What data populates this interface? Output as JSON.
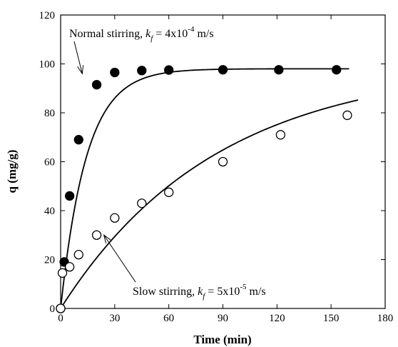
{
  "chart_data": {
    "type": "scatter",
    "xlabel": "Time (min)",
    "ylabel": "q (mg/g)",
    "xlim": [
      0,
      180
    ],
    "ylim": [
      0,
      120
    ],
    "x_ticks": [
      0,
      30,
      60,
      90,
      120,
      150,
      180
    ],
    "y_ticks": [
      0,
      20,
      40,
      60,
      80,
      100,
      120
    ],
    "grid": false,
    "series": [
      {
        "marker": "filled-circle",
        "points": [
          [
            0,
            0
          ],
          [
            2,
            19
          ],
          [
            5,
            46
          ],
          [
            10,
            69
          ],
          [
            20,
            91.5
          ],
          [
            30,
            96.5
          ],
          [
            45,
            97.3
          ],
          [
            60,
            97.5
          ],
          [
            90,
            97.6
          ],
          [
            121,
            97.6
          ],
          [
            153,
            97.6
          ]
        ],
        "fit_curve": {
          "model": "q = qe(1 - exp(-k t))",
          "qe": 98,
          "k": 0.07,
          "x_range": [
            0,
            160
          ]
        }
      },
      {
        "marker": "open-circle",
        "points": [
          [
            0,
            0
          ],
          [
            1,
            14.5
          ],
          [
            5,
            17
          ],
          [
            10,
            22
          ],
          [
            20,
            30
          ],
          [
            30,
            37
          ],
          [
            45,
            43
          ],
          [
            60,
            47.5
          ],
          [
            90,
            60
          ],
          [
            122,
            71
          ],
          [
            159,
            79
          ]
        ],
        "fit_curve": {
          "model": "q = qe(1 - exp(-k t))",
          "qe": 100,
          "k": 0.0116,
          "x_range": [
            0,
            165
          ]
        }
      }
    ],
    "annotations": [
      {
        "prefix": "Normal stirring, ",
        "k_symbol": "k",
        "k_sub": "f",
        "value": " = 4x10",
        "exponent": "-4",
        "unit": " m/s",
        "arrow_target": [
          12,
          96
        ]
      },
      {
        "prefix": "Slow stirring, ",
        "k_symbol": "k",
        "k_sub": "f",
        "value": " = 5x10",
        "exponent": "-5",
        "unit": " m/s",
        "arrow_target": [
          24,
          30
        ]
      }
    ]
  },
  "colors": {
    "axis": "#000000",
    "marker_fill": "#000000",
    "open_marker_fill": "#ffffff"
  }
}
